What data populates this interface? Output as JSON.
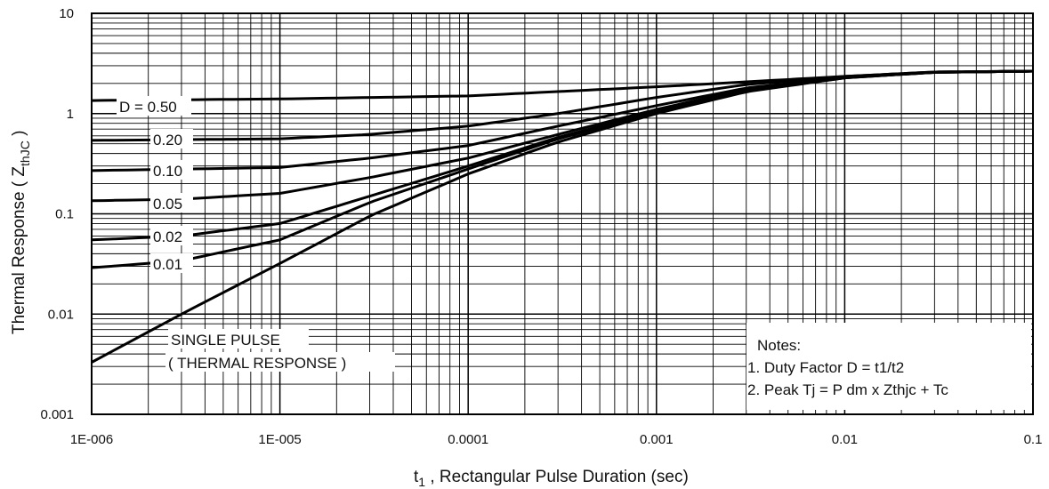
{
  "chart_data": {
    "type": "line",
    "title": "",
    "xlabel_main": "t",
    "xlabel_sub": "1",
    "xlabel_rest": " , Rectangular Pulse Duration (sec)",
    "ylabel_main": "Thermal Response ( Z",
    "ylabel_sub": "thJC",
    "ylabel_end": " )",
    "x_scale": "log",
    "y_scale": "log",
    "xlim": [
      1e-06,
      0.1
    ],
    "ylim": [
      0.001,
      10
    ],
    "x_tick_labels": [
      "1E-006",
      "1E-005",
      "0.0001",
      "0.001",
      "0.01",
      "0.1"
    ],
    "y_tick_labels": [
      "0.001",
      "0.01",
      "0.1",
      "1",
      "10"
    ],
    "grid": true,
    "series": [
      {
        "name": "D = 0.50",
        "x": [
          1e-06,
          1e-05,
          0.0001,
          0.001,
          0.01,
          0.03,
          0.1
        ],
        "y": [
          1.35,
          1.4,
          1.5,
          1.85,
          2.35,
          2.6,
          2.65
        ]
      },
      {
        "name": "0.20",
        "x": [
          1e-06,
          1e-05,
          3e-05,
          0.0001,
          0.0003,
          0.001,
          0.003,
          0.01,
          0.03,
          0.1
        ],
        "y": [
          0.54,
          0.56,
          0.62,
          0.75,
          1.0,
          1.45,
          1.95,
          2.35,
          2.6,
          2.65
        ]
      },
      {
        "name": "0.10",
        "x": [
          1e-06,
          1e-05,
          3e-05,
          0.0001,
          0.0003,
          0.001,
          0.003,
          0.01,
          0.03,
          0.1
        ],
        "y": [
          0.27,
          0.29,
          0.36,
          0.48,
          0.75,
          1.2,
          1.8,
          2.3,
          2.58,
          2.65
        ]
      },
      {
        "name": "0.05",
        "x": [
          1e-06,
          3e-06,
          1e-05,
          3e-05,
          0.0001,
          0.0003,
          0.001,
          0.003,
          0.01,
          0.03,
          0.1
        ],
        "y": [
          0.135,
          0.14,
          0.16,
          0.23,
          0.36,
          0.62,
          1.1,
          1.75,
          2.3,
          2.58,
          2.65
        ]
      },
      {
        "name": "0.02",
        "x": [
          1e-06,
          3e-06,
          1e-05,
          3e-05,
          0.0001,
          0.0003,
          0.001,
          0.003,
          0.01,
          0.03,
          0.1
        ],
        "y": [
          0.055,
          0.06,
          0.08,
          0.15,
          0.3,
          0.58,
          1.05,
          1.7,
          2.28,
          2.58,
          2.65
        ]
      },
      {
        "name": "0.01",
        "x": [
          1e-06,
          3e-06,
          1e-05,
          3e-05,
          0.0001,
          0.0003,
          0.001,
          0.003,
          0.01,
          0.03,
          0.1
        ],
        "y": [
          0.029,
          0.034,
          0.055,
          0.13,
          0.28,
          0.56,
          1.02,
          1.68,
          2.27,
          2.58,
          2.65
        ]
      },
      {
        "name": "SINGLE PULSE",
        "x": [
          1e-06,
          3e-06,
          1e-05,
          3e-05,
          0.0001,
          0.0003,
          0.001,
          0.003,
          0.01,
          0.03,
          0.1
        ],
        "y": [
          0.0033,
          0.01,
          0.032,
          0.095,
          0.25,
          0.52,
          1.0,
          1.65,
          2.27,
          2.58,
          2.65
        ]
      }
    ],
    "curve_labels": [
      "D = 0.50",
      "0.20",
      "0.10",
      "0.05",
      "0.02",
      "0.01"
    ],
    "single_pulse_label": [
      "SINGLE PULSE",
      "( THERMAL RESPONSE )"
    ],
    "notes": [
      "Notes:",
      "1. Duty Factor D = t1/t2",
      "2. Peak Tj = P dm x Zthjc + Tc"
    ]
  }
}
